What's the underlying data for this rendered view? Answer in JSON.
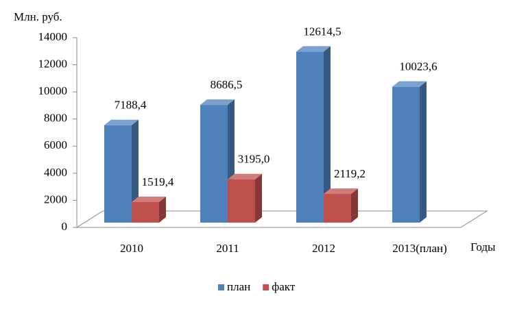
{
  "chart_data": {
    "type": "bar3d",
    "y_axis_label": "Млн. руб.",
    "x_axis_label": "Годы",
    "categories": [
      "2010",
      "2011",
      "2012",
      "2013(план)"
    ],
    "series": [
      {
        "name": "план",
        "color": "#4f81bd",
        "values": [
          7188.4,
          8686.5,
          12614.5,
          10023.6
        ],
        "value_labels": [
          "7188,4",
          "8686,5",
          "12614,5",
          "10023,6"
        ]
      },
      {
        "name": "факт",
        "color": "#c0504d",
        "values": [
          1519.4,
          3195.0,
          2119.2,
          null
        ],
        "value_labels": [
          "1519,4",
          "3195,0",
          "2119,2",
          null
        ]
      }
    ],
    "ylim": [
      0,
      14000
    ],
    "yticks": [
      0,
      2000,
      4000,
      6000,
      8000,
      10000,
      12000,
      14000
    ]
  }
}
